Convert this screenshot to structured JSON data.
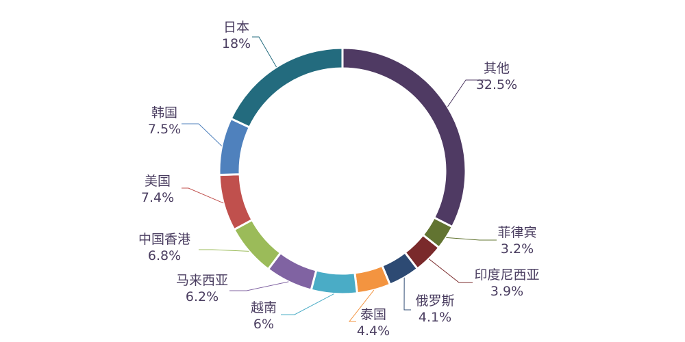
{
  "chart_data": {
    "type": "pie",
    "variant": "donut",
    "title": "",
    "slices": [
      {
        "name": "其他",
        "value": 32.5,
        "label": "32.5%",
        "color": "#4f3a63"
      },
      {
        "name": "菲律宾",
        "value": 3.2,
        "label": "3.2%",
        "color": "#627431"
      },
      {
        "name": "印度尼西亚",
        "value": 3.9,
        "label": "3.9%",
        "color": "#7a2a2b"
      },
      {
        "name": "俄罗斯",
        "value": 4.1,
        "label": "4.1%",
        "color": "#2d4a73"
      },
      {
        "name": "泰国",
        "value": 4.4,
        "label": "4.4%",
        "color": "#f39440"
      },
      {
        "name": "越南",
        "value": 6.0,
        "label": "6%",
        "color": "#4aacc6"
      },
      {
        "name": "马来西亚",
        "value": 6.2,
        "label": "6.2%",
        "color": "#8063a2"
      },
      {
        "name": "中国香港",
        "value": 6.8,
        "label": "6.8%",
        "color": "#9bbb59"
      },
      {
        "name": "美国",
        "value": 7.4,
        "label": "7.4%",
        "color": "#c0504d"
      },
      {
        "name": "韩国",
        "value": 7.5,
        "label": "7.5%",
        "color": "#4f81bd"
      },
      {
        "name": "日本",
        "value": 18.0,
        "label": "18%",
        "color": "#236b7e"
      }
    ],
    "start_angle": "top",
    "direction": "clockwise",
    "legend": "none"
  }
}
